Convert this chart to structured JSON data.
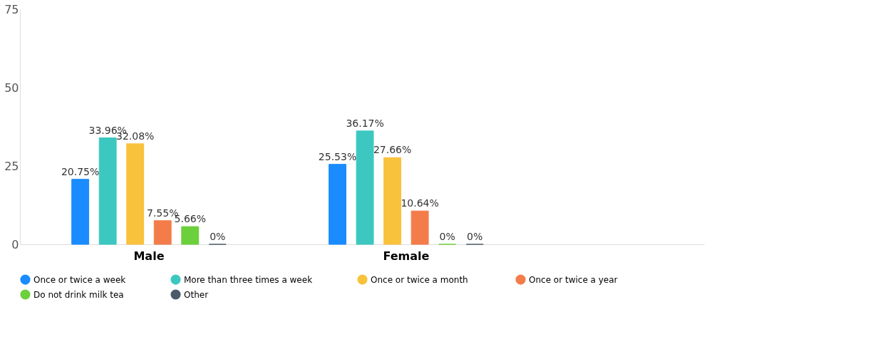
{
  "chart_data": {
    "type": "bar",
    "categories": [
      "Male",
      "Female"
    ],
    "ylim": [
      0,
      75
    ],
    "yticks": [
      0,
      25,
      50,
      75
    ],
    "grid": false,
    "legend": "bottom",
    "series": [
      {
        "name": "Once or twice a week",
        "color": "#1a8cff",
        "values": [
          20.75,
          25.53
        ],
        "value_labels": [
          "20.75%",
          "25.53%"
        ]
      },
      {
        "name": "More than three times a week",
        "color": "#3cc8c0",
        "values": [
          33.96,
          36.17
        ],
        "value_labels": [
          "33.96%",
          "36.17%"
        ]
      },
      {
        "name": "Once or twice  a month",
        "color": "#f8c23c",
        "values": [
          32.08,
          27.66
        ],
        "value_labels": [
          "32.08%",
          "27.66%"
        ]
      },
      {
        "name": "Once or twice a year",
        "color": "#f47c4a",
        "values": [
          7.55,
          10.64
        ],
        "value_labels": [
          "7.55%",
          "10.64%"
        ]
      },
      {
        "name": "Do not drink milk tea",
        "color": "#6ccf3c",
        "values": [
          5.66,
          0
        ],
        "value_labels": [
          "5.66%",
          "0%"
        ]
      },
      {
        "name": "Other",
        "color": "#4a5a6a",
        "values": [
          0,
          0
        ],
        "value_labels": [
          "0%",
          "0%"
        ]
      }
    ]
  }
}
